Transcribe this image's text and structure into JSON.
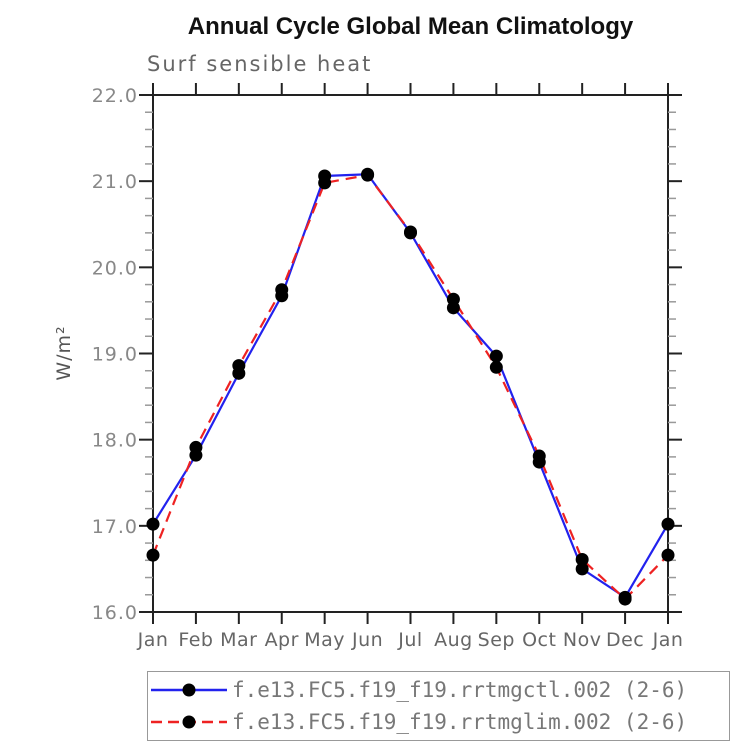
{
  "chart_data": {
    "type": "line",
    "title": "Annual Cycle Global Mean Climatology",
    "subtitle": "Surf sensible heat",
    "ylabel": "W/m²",
    "x_categories": [
      "Jan",
      "Feb",
      "Mar",
      "Apr",
      "May",
      "Jun",
      "Jul",
      "Aug",
      "Sep",
      "Oct",
      "Nov",
      "Dec",
      "Jan"
    ],
    "ylim": [
      16.0,
      22.0
    ],
    "ytick_major": 1.0,
    "ytick_minor": 0.2,
    "grid": false,
    "legend_position": "bottom",
    "marker": {
      "shape": "circle",
      "color": "#000000"
    },
    "axis_color": "#222222",
    "series": [
      {
        "name": "f.e13.FC5.f19_f19.rrtmgctl.002 (2-6)",
        "color": "#2222ee",
        "line_style": "solid",
        "values": [
          17.02,
          17.82,
          18.77,
          19.67,
          21.06,
          21.08,
          20.4,
          19.53,
          18.97,
          17.74,
          16.5,
          16.17,
          17.02
        ]
      },
      {
        "name": "f.e13.FC5.f19_f19.rrtmglim.002 (2-6)",
        "color": "#ee2222",
        "line_style": "dashed",
        "values": [
          16.66,
          17.91,
          18.86,
          19.74,
          20.98,
          21.07,
          20.41,
          19.63,
          18.84,
          17.81,
          16.61,
          16.15,
          16.66
        ]
      }
    ]
  }
}
